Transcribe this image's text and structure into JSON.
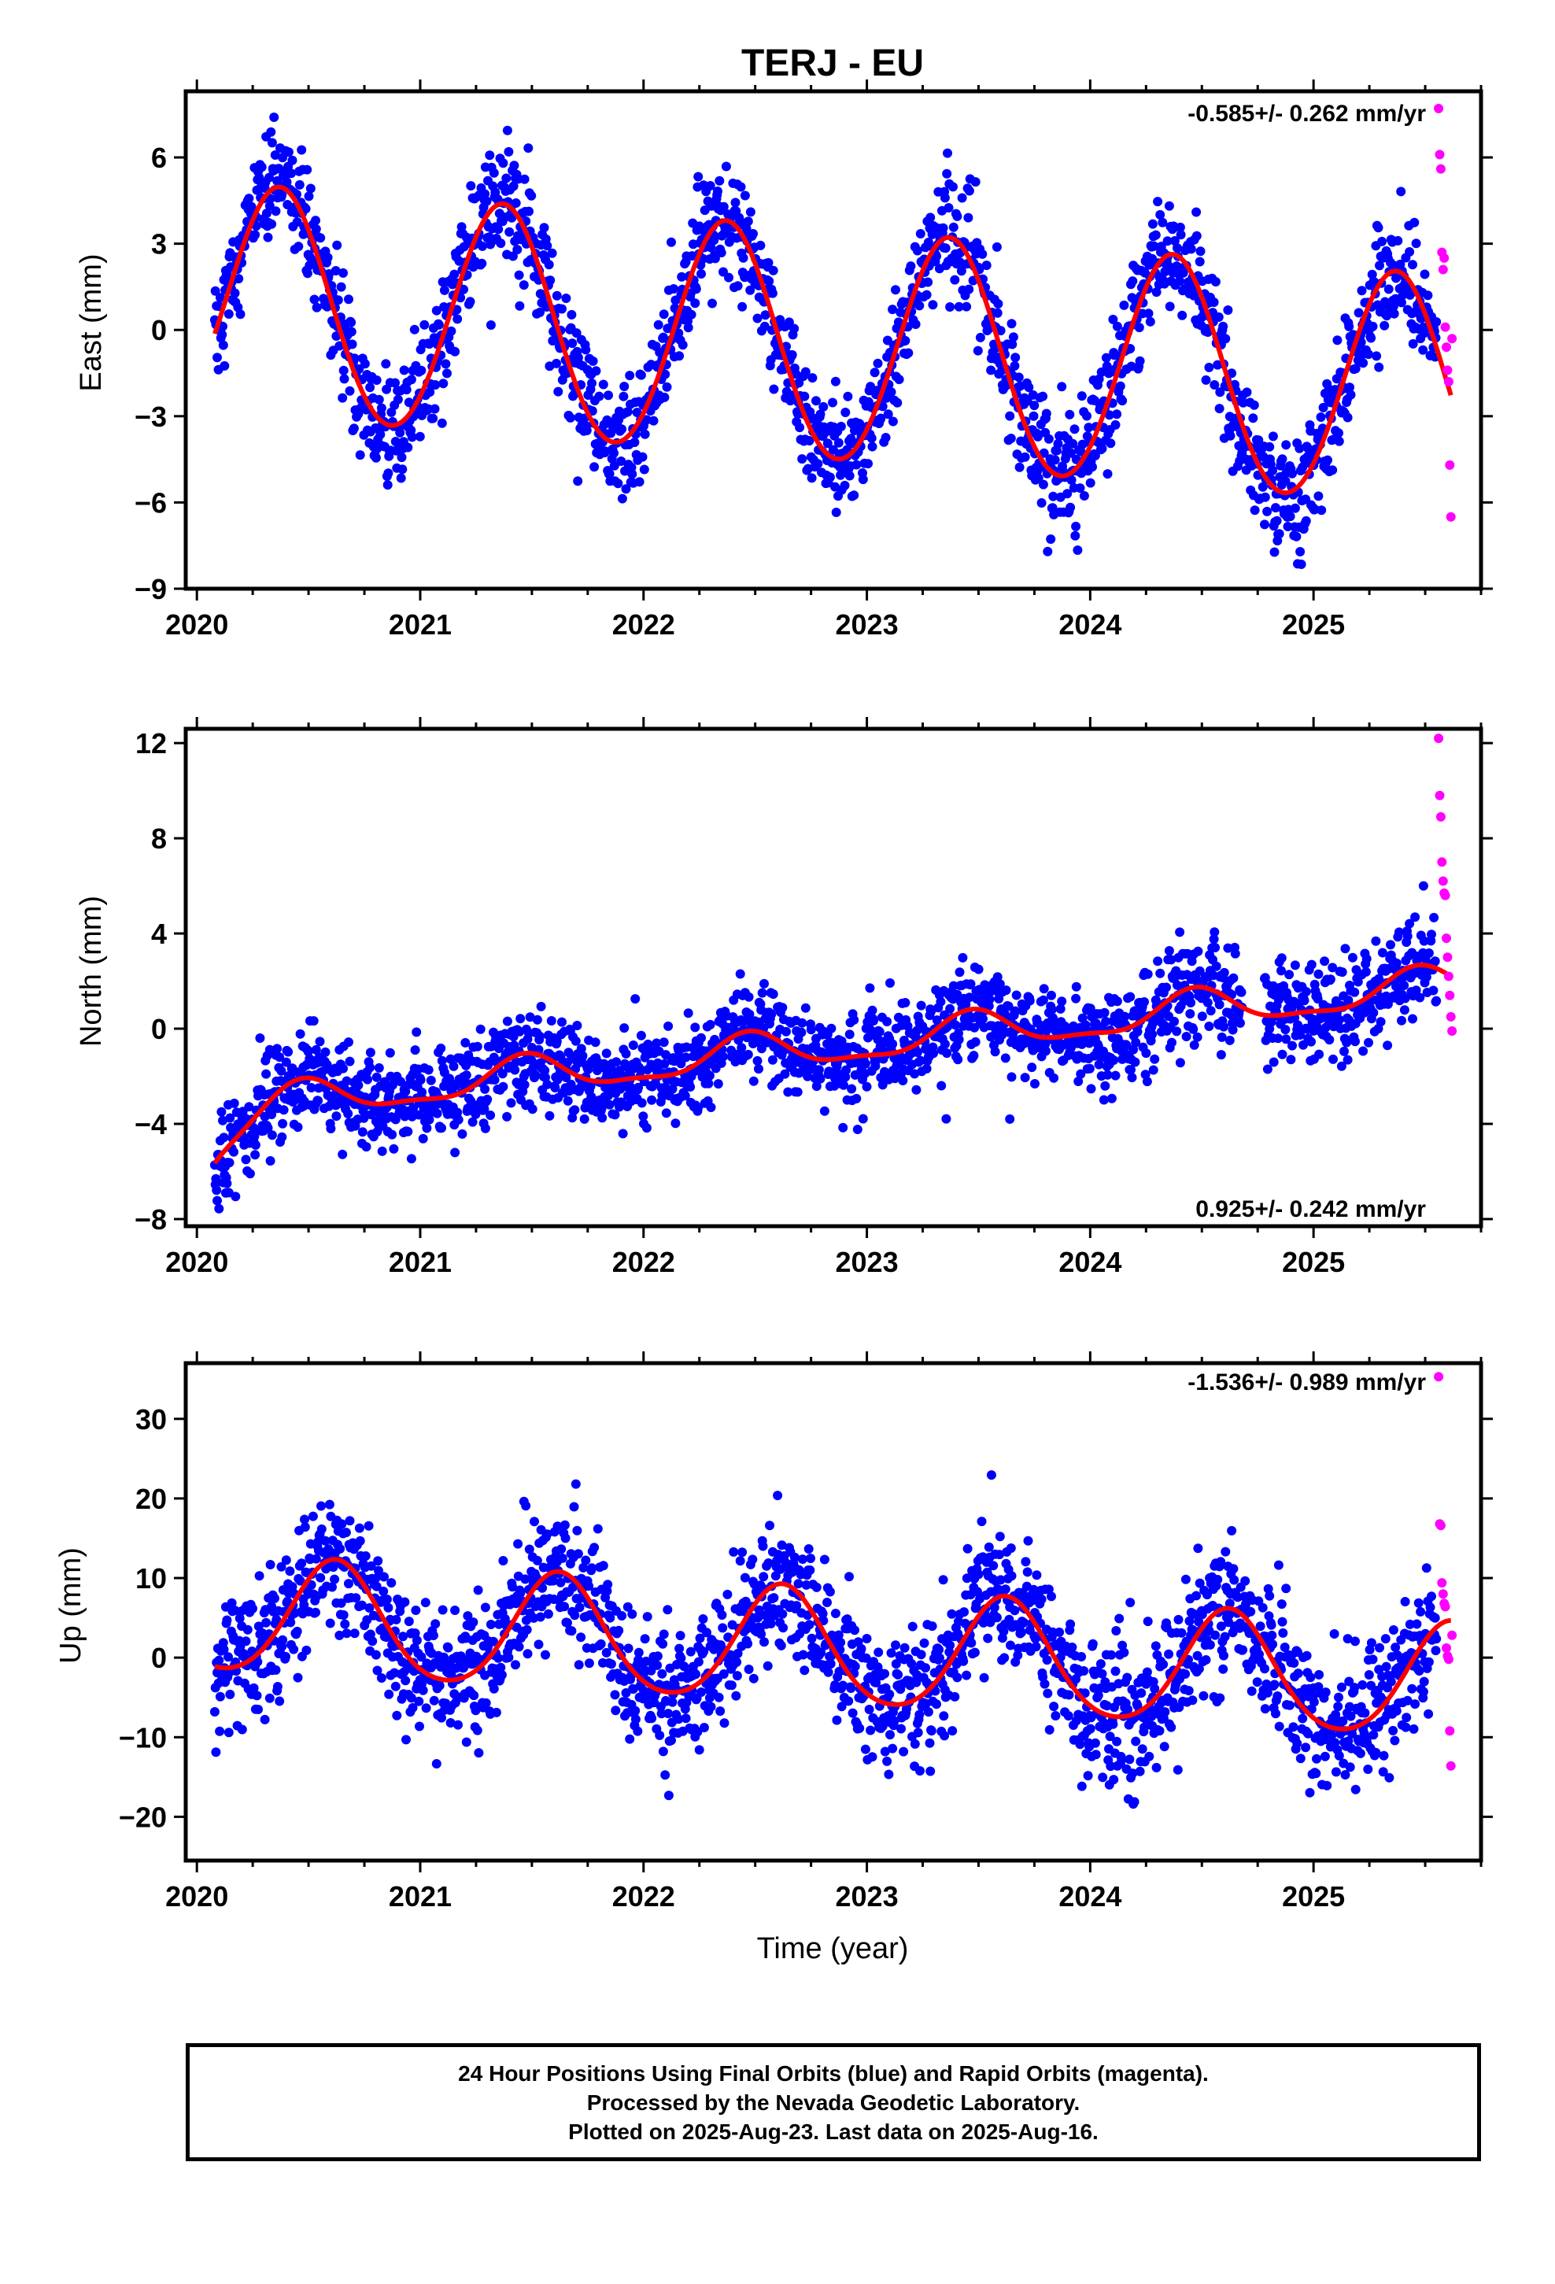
{
  "title": "TERJ - EU",
  "xlabel": "Time (year)",
  "colors": {
    "final": "#0000ff",
    "rapid": "#ff00ff",
    "model": "#ff0000",
    "frame": "#000000"
  },
  "footer": {
    "line1": "24 Hour Positions Using Final Orbits (blue) and Rapid Orbits (magenta).",
    "line2": "Processed by the Nevada Geodetic Laboratory.",
    "line3": "Plotted on 2025-Aug-23. Last data on 2025-Aug-16."
  },
  "chart_data": [
    {
      "type": "scatter",
      "ylabel": "East (mm)",
      "rate_text": "-0.585+/- 0.262 mm/yr",
      "rate_position": "top-right",
      "xlim": [
        2019.95,
        2025.75
      ],
      "ylim": [
        -9,
        8.3
      ],
      "xticks": [
        "2020",
        "2021",
        "2022",
        "2023",
        "2024",
        "2025"
      ],
      "yticks": [
        "−9",
        "−6",
        "−3",
        "0",
        "3",
        "6"
      ],
      "model": {
        "trend_mm_per_yr": -0.585,
        "offset": -0.6,
        "annual_amp": 4.0,
        "peak_year_fraction": 0.37,
        "semiannual_amp": 0.15,
        "ref_year": 2022.8
      },
      "series": [
        {
          "name": "Final Orbits",
          "color": "#0000ff",
          "x_range": [
            2020.08,
            2025.55
          ],
          "scatter_sd": 1.0,
          "count": 2000
        },
        {
          "name": "Rapid Orbits",
          "color": "#ff00ff",
          "x": [
            2025.56,
            2025.565,
            2025.57,
            2025.575,
            2025.58,
            2025.585,
            2025.59,
            2025.595,
            2025.6,
            2025.605,
            2025.61,
            2025.615,
            2025.62
          ],
          "y": [
            7.7,
            6.1,
            5.6,
            2.7,
            2.1,
            2.5,
            0.1,
            -0.6,
            -1.4,
            -1.8,
            -4.7,
            -6.5,
            -0.3
          ]
        }
      ]
    },
    {
      "type": "scatter",
      "ylabel": "North (mm)",
      "rate_text": "0.925+/- 0.242 mm/yr",
      "rate_position": "bottom-right",
      "xlim": [
        2019.95,
        2025.75
      ],
      "ylim": [
        -8.3,
        12.6
      ],
      "xticks": [
        "2020",
        "2021",
        "2022",
        "2023",
        "2024",
        "2025"
      ],
      "yticks": [
        "−8",
        "−4",
        "0",
        "4",
        "8",
        "12"
      ],
      "model": {
        "trend_mm_per_yr": 0.925,
        "offset": -0.8,
        "annual_amp": 0.75,
        "peak_year_fraction": 0.47,
        "semiannual_amp": 0.25,
        "ref_year": 2022.8,
        "init_drop": 1.8,
        "init_tau": 0.15
      },
      "gaps": [
        [
          2024.68,
          2024.78
        ]
      ],
      "series": [
        {
          "name": "Final Orbits",
          "color": "#0000ff",
          "x_range": [
            2020.08,
            2025.55
          ],
          "scatter_sd": 1.0,
          "count": 2000
        },
        {
          "name": "Rapid Orbits",
          "color": "#ff00ff",
          "x": [
            2025.56,
            2025.565,
            2025.57,
            2025.575,
            2025.58,
            2025.585,
            2025.59,
            2025.595,
            2025.6,
            2025.605,
            2025.61,
            2025.615,
            2025.62
          ],
          "y": [
            12.2,
            9.8,
            8.9,
            7.0,
            6.2,
            5.7,
            5.6,
            3.8,
            3.0,
            2.2,
            1.4,
            0.5,
            -0.1
          ]
        }
      ]
    },
    {
      "type": "scatter",
      "ylabel": "Up (mm)",
      "rate_text": "-1.536+/- 0.989 mm/yr",
      "rate_position": "top-right",
      "xlim": [
        2019.95,
        2025.75
      ],
      "ylim": [
        -25.5,
        37
      ],
      "xticks": [
        "2020",
        "2021",
        "2022",
        "2023",
        "2024",
        "2025"
      ],
      "yticks": [
        "−20",
        "−10",
        "0",
        "10",
        "20",
        "30"
      ],
      "model": {
        "trend_mm_per_yr": -1.536,
        "offset": 1.0,
        "annual_amp": 7.2,
        "peak_year_fraction": 0.62,
        "semiannual_amp": 0.8,
        "ref_year": 2022.8
      },
      "series": [
        {
          "name": "Final Orbits",
          "color": "#0000ff",
          "x_range": [
            2020.08,
            2025.55
          ],
          "scatter_sd": 4.2,
          "count": 2000
        },
        {
          "name": "Rapid Orbits",
          "color": "#ff00ff",
          "x": [
            2025.56,
            2025.565,
            2025.57,
            2025.575,
            2025.58,
            2025.585,
            2025.59,
            2025.595,
            2025.6,
            2025.605,
            2025.61,
            2025.615,
            2025.62
          ],
          "y": [
            35.3,
            16.8,
            16.6,
            9.4,
            8.0,
            6.8,
            6.4,
            1.2,
            0.2,
            -0.2,
            -9.2,
            -13.6,
            2.8
          ]
        }
      ]
    }
  ]
}
